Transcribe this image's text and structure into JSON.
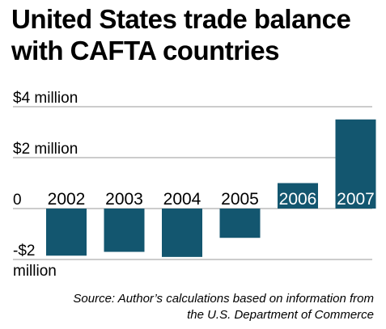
{
  "chart_data": {
    "type": "bar",
    "title": [
      "United States trade balance",
      "with CAFTA countries"
    ],
    "categories": [
      "2002",
      "2003",
      "2004",
      "2005",
      "2006",
      "2007"
    ],
    "values": [
      -1.85,
      -1.7,
      -1.9,
      -1.15,
      1.0,
      3.5
    ],
    "ylim": [
      -2,
      4
    ],
    "y_ticks": [
      {
        "value": 4,
        "label": "$4 million"
      },
      {
        "value": 2,
        "label": "$2 million"
      },
      {
        "value": 0,
        "label": "0"
      },
      {
        "value": -2,
        "label": "-$2"
      }
    ],
    "y_tick_extra": "million",
    "grid": true,
    "bar_color": "#13566f",
    "grid_color": "#9a9a9a",
    "category_label_color_on_bar": "#ffffff",
    "category_label_color_off_bar": "#000000"
  },
  "source": {
    "line1": "Source: Author’s calculations based on information from",
    "line2": "the  U.S. Department of Commerce"
  }
}
